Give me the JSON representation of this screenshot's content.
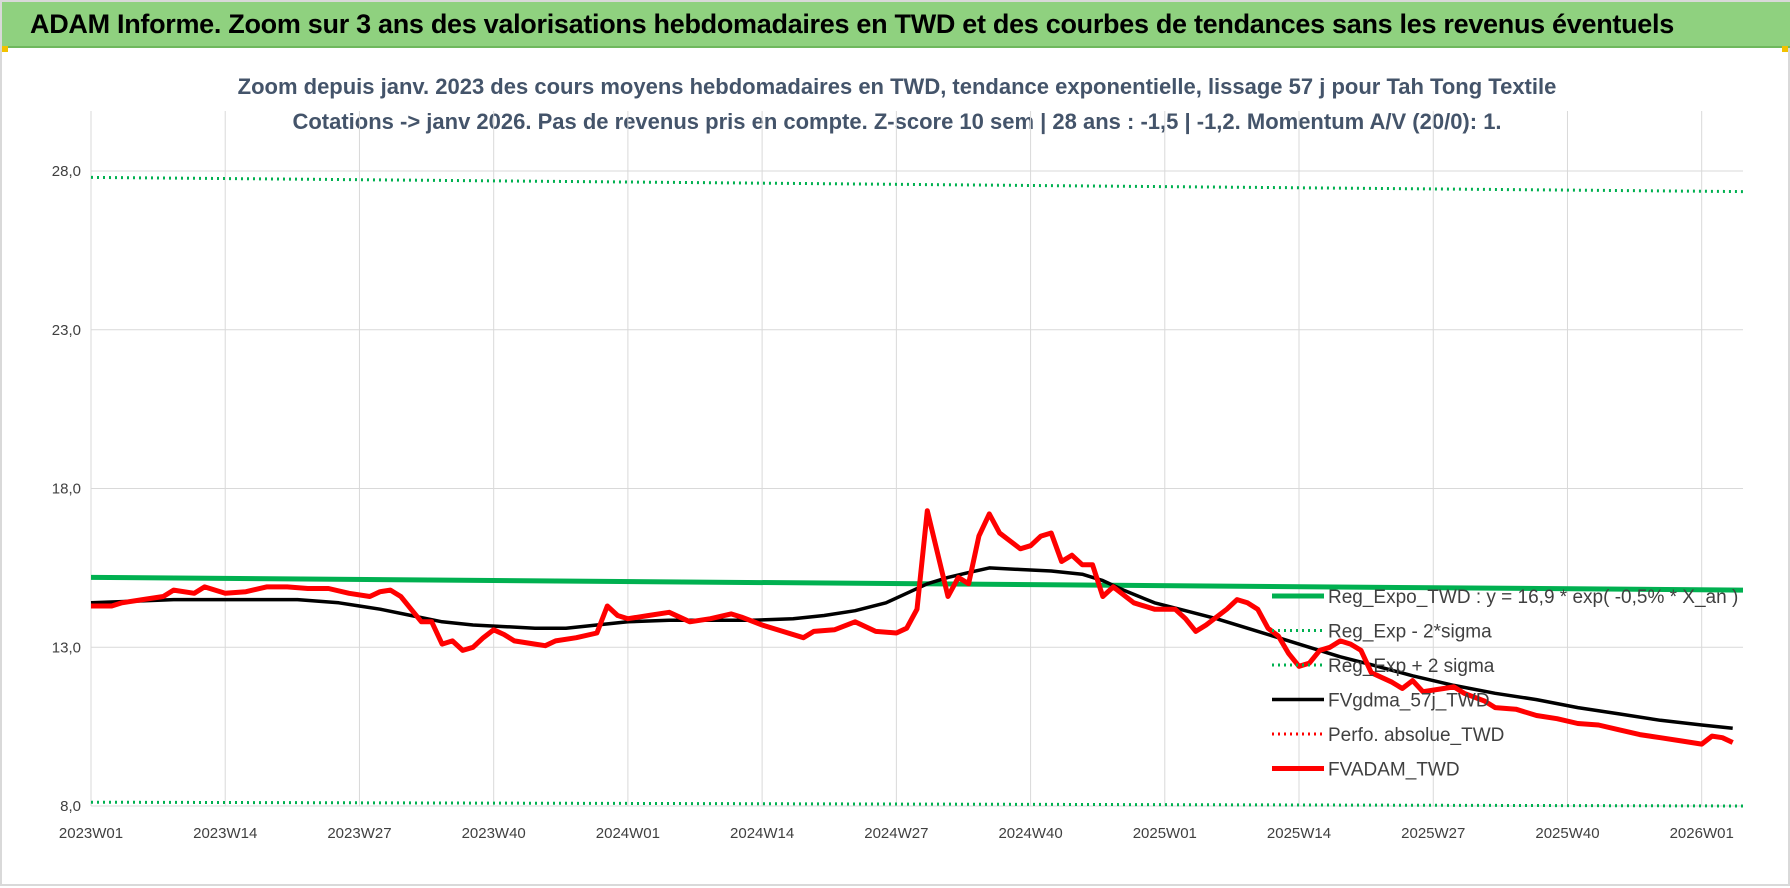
{
  "banner": {
    "title": "ADAM Informe. Zoom sur 3 ans des valorisations hebdomadaires en TWD et des courbes de tendances sans les revenus éventuels"
  },
  "colors": {
    "banner_bg": "#8fd17f",
    "reg_expo": "#00b050",
    "fvgdma": "#000000",
    "perfo": "#ff0000",
    "fvadam": "#ff0000",
    "title_text": "#44546a"
  },
  "chart_data": {
    "type": "line",
    "title_line1": "Zoom depuis janv. 2023 des cours moyens hebdomadaires en TWD, tendance exponentielle, lissage 57 j pour Tah Tong Textile",
    "title_line2": "Cotations -> janv 2026. Pas de revenus pris en compte. Z-score 10 sem | 28 ans : -1,5 | -1,2. Momentum A/V (20/0): 1.",
    "x_range": [
      0,
      160
    ],
    "ylim": [
      8.0,
      28.0
    ],
    "y_ticks": [
      {
        "value": 8.0,
        "label": "8,0"
      },
      {
        "value": 13.0,
        "label": "13,0"
      },
      {
        "value": 18.0,
        "label": "18,0"
      },
      {
        "value": 23.0,
        "label": "23,0"
      },
      {
        "value": 28.0,
        "label": "28,0"
      }
    ],
    "x_ticks": [
      {
        "index": 0,
        "label": "2023W01"
      },
      {
        "index": 13,
        "label": "2023W14"
      },
      {
        "index": 26,
        "label": "2023W27"
      },
      {
        "index": 39,
        "label": "2023W40"
      },
      {
        "index": 52,
        "label": "2024W01"
      },
      {
        "index": 65,
        "label": "2024W14"
      },
      {
        "index": 78,
        "label": "2024W27"
      },
      {
        "index": 91,
        "label": "2024W40"
      },
      {
        "index": 104,
        "label": "2025W01"
      },
      {
        "index": 117,
        "label": "2025W14"
      },
      {
        "index": 130,
        "label": "2025W27"
      },
      {
        "index": 143,
        "label": "2025W40"
      },
      {
        "index": 156,
        "label": "2026W01"
      }
    ],
    "grid": "vertical and horizontal",
    "legend_position": "right-bottom",
    "series": [
      {
        "name": "Reg_Expo_TWD : y = 16,9 * exp( -0,5% * X_an )",
        "style": "solid-thick",
        "color": "#00b050",
        "points": [
          [
            0,
            15.2
          ],
          [
            160,
            14.8
          ]
        ]
      },
      {
        "name": "Reg_Exp - 2*sigma",
        "style": "dotted",
        "color": "#00b050",
        "points": [
          [
            0,
            8.12
          ],
          [
            160,
            8.0
          ]
        ]
      },
      {
        "name": "Reg_Exp + 2 sigma",
        "style": "dotted",
        "color": "#00b050",
        "points": [
          [
            0,
            27.8
          ],
          [
            160,
            27.35
          ]
        ]
      },
      {
        "name": "FVgdma_57j_TWD",
        "style": "solid",
        "color": "#000000",
        "points": [
          [
            0,
            14.4
          ],
          [
            4,
            14.45
          ],
          [
            8,
            14.5
          ],
          [
            12,
            14.5
          ],
          [
            16,
            14.5
          ],
          [
            20,
            14.5
          ],
          [
            24,
            14.4
          ],
          [
            26,
            14.3
          ],
          [
            28,
            14.2
          ],
          [
            31,
            14.0
          ],
          [
            34,
            13.8
          ],
          [
            37,
            13.7
          ],
          [
            40,
            13.65
          ],
          [
            43,
            13.6
          ],
          [
            46,
            13.6
          ],
          [
            49,
            13.7
          ],
          [
            52,
            13.8
          ],
          [
            56,
            13.85
          ],
          [
            60,
            13.85
          ],
          [
            64,
            13.85
          ],
          [
            68,
            13.9
          ],
          [
            71,
            14.0
          ],
          [
            74,
            14.15
          ],
          [
            77,
            14.4
          ],
          [
            79,
            14.7
          ],
          [
            81,
            15.0
          ],
          [
            83,
            15.2
          ],
          [
            85,
            15.35
          ],
          [
            87,
            15.5
          ],
          [
            90,
            15.45
          ],
          [
            93,
            15.4
          ],
          [
            96,
            15.3
          ],
          [
            98,
            15.1
          ],
          [
            100,
            14.8
          ],
          [
            103,
            14.4
          ],
          [
            106,
            14.15
          ],
          [
            109,
            13.9
          ],
          [
            112,
            13.6
          ],
          [
            115,
            13.3
          ],
          [
            118,
            13.0
          ],
          [
            121,
            12.7
          ],
          [
            124,
            12.45
          ],
          [
            128,
            12.1
          ],
          [
            132,
            11.8
          ],
          [
            136,
            11.55
          ],
          [
            140,
            11.35
          ],
          [
            144,
            11.1
          ],
          [
            148,
            10.9
          ],
          [
            152,
            10.7
          ],
          [
            156,
            10.55
          ],
          [
            159,
            10.45
          ]
        ]
      },
      {
        "name": "Perfo. absolue_TWD",
        "style": "dotted",
        "color": "#ff0000",
        "points": []
      },
      {
        "name": "FVADAM_TWD",
        "style": "solid-thick",
        "color": "#ff0000",
        "points": [
          [
            0,
            14.3
          ],
          [
            2,
            14.3
          ],
          [
            3,
            14.4
          ],
          [
            5,
            14.5
          ],
          [
            7,
            14.6
          ],
          [
            8,
            14.8
          ],
          [
            10,
            14.7
          ],
          [
            11,
            14.9
          ],
          [
            13,
            14.7
          ],
          [
            15,
            14.75
          ],
          [
            17,
            14.9
          ],
          [
            19,
            14.9
          ],
          [
            21,
            14.85
          ],
          [
            23,
            14.85
          ],
          [
            25,
            14.7
          ],
          [
            27,
            14.6
          ],
          [
            28,
            14.75
          ],
          [
            29,
            14.8
          ],
          [
            30,
            14.6
          ],
          [
            31,
            14.2
          ],
          [
            32,
            13.8
          ],
          [
            33,
            13.8
          ],
          [
            34,
            13.1
          ],
          [
            35,
            13.2
          ],
          [
            36,
            12.9
          ],
          [
            37,
            13.0
          ],
          [
            38,
            13.3
          ],
          [
            39,
            13.55
          ],
          [
            40,
            13.4
          ],
          [
            41,
            13.2
          ],
          [
            43,
            13.1
          ],
          [
            44,
            13.05
          ],
          [
            45,
            13.2
          ],
          [
            47,
            13.3
          ],
          [
            49,
            13.45
          ],
          [
            50,
            14.3
          ],
          [
            51,
            14.0
          ],
          [
            52,
            13.9
          ],
          [
            54,
            14.0
          ],
          [
            56,
            14.1
          ],
          [
            58,
            13.8
          ],
          [
            60,
            13.9
          ],
          [
            62,
            14.05
          ],
          [
            63,
            13.95
          ],
          [
            65,
            13.7
          ],
          [
            67,
            13.5
          ],
          [
            69,
            13.3
          ],
          [
            70,
            13.5
          ],
          [
            72,
            13.55
          ],
          [
            74,
            13.8
          ],
          [
            76,
            13.5
          ],
          [
            78,
            13.45
          ],
          [
            79,
            13.6
          ],
          [
            80,
            14.2
          ],
          [
            81,
            17.3
          ],
          [
            83,
            14.6
          ],
          [
            84,
            15.2
          ],
          [
            85,
            15.0
          ],
          [
            86,
            16.5
          ],
          [
            87,
            17.2
          ],
          [
            88,
            16.6
          ],
          [
            90,
            16.1
          ],
          [
            91,
            16.2
          ],
          [
            92,
            16.5
          ],
          [
            93,
            16.6
          ],
          [
            94,
            15.7
          ],
          [
            95,
            15.9
          ],
          [
            96,
            15.6
          ],
          [
            97,
            15.6
          ],
          [
            98,
            14.6
          ],
          [
            99,
            14.9
          ],
          [
            101,
            14.4
          ],
          [
            103,
            14.2
          ],
          [
            105,
            14.2
          ],
          [
            106,
            13.9
          ],
          [
            107,
            13.5
          ],
          [
            108,
            13.7
          ],
          [
            110,
            14.2
          ],
          [
            111,
            14.5
          ],
          [
            112,
            14.4
          ],
          [
            113,
            14.2
          ],
          [
            114,
            13.6
          ],
          [
            115,
            13.35
          ],
          [
            116,
            12.8
          ],
          [
            117,
            12.4
          ],
          [
            118,
            12.5
          ],
          [
            119,
            12.9
          ],
          [
            120,
            13.0
          ],
          [
            121,
            13.2
          ],
          [
            122,
            13.1
          ],
          [
            123,
            12.9
          ],
          [
            124,
            12.2
          ],
          [
            126,
            11.9
          ],
          [
            127,
            11.7
          ],
          [
            128,
            11.95
          ],
          [
            129,
            11.6
          ],
          [
            131,
            11.7
          ],
          [
            132,
            11.75
          ],
          [
            133,
            11.55
          ],
          [
            135,
            11.3
          ],
          [
            136,
            11.1
          ],
          [
            138,
            11.05
          ],
          [
            140,
            10.85
          ],
          [
            142,
            10.75
          ],
          [
            144,
            10.6
          ],
          [
            146,
            10.55
          ],
          [
            148,
            10.4
          ],
          [
            150,
            10.25
          ],
          [
            152,
            10.15
          ],
          [
            154,
            10.05
          ],
          [
            156,
            9.95
          ],
          [
            157,
            10.2
          ],
          [
            158,
            10.15
          ],
          [
            159,
            10.0
          ]
        ]
      }
    ]
  }
}
